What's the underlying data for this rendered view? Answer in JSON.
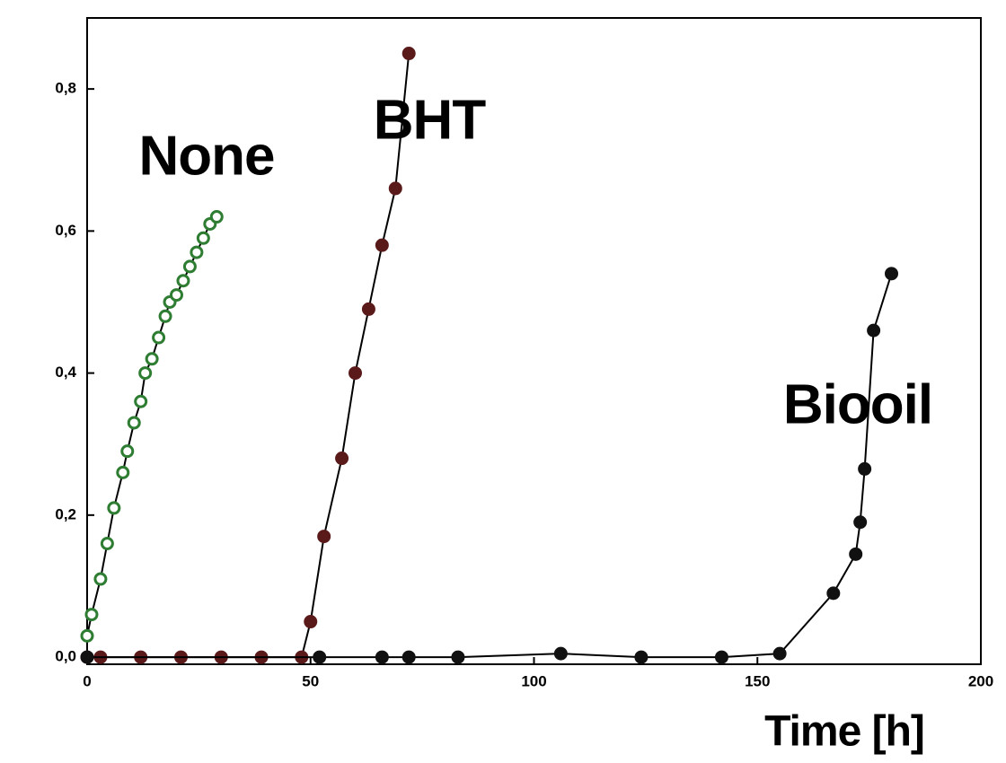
{
  "chart_data": {
    "type": "line",
    "xlabel": "Time [h]",
    "annotations": [
      "None",
      "BHT",
      "Biooil"
    ],
    "xlim": [
      0,
      200
    ],
    "xticks": [
      0,
      50,
      100,
      150,
      200
    ],
    "ylim": [
      -0.01,
      0.9
    ],
    "yticks": [
      {
        "value": 0,
        "label": "0,0"
      },
      {
        "value": 0.2,
        "label": "0,2"
      },
      {
        "value": 0.4,
        "label": "0,4"
      },
      {
        "value": 0.6,
        "label": "0,6"
      },
      {
        "value": 0.8,
        "label": "0,8"
      }
    ],
    "series": [
      {
        "name": "None",
        "color": "#2e7d32",
        "marker": "open",
        "x": [
          0,
          1,
          3,
          4.5,
          6,
          8,
          9,
          10.5,
          12,
          13,
          14.5,
          16,
          17.5,
          18.5,
          20,
          21.5,
          23,
          24.5,
          26,
          27.5,
          29
        ],
        "values": [
          0.03,
          0.06,
          0.11,
          0.16,
          0.21,
          0.26,
          0.29,
          0.33,
          0.36,
          0.4,
          0.42,
          0.45,
          0.48,
          0.5,
          0.51,
          0.53,
          0.55,
          0.57,
          0.59,
          0.61,
          0.62
        ]
      },
      {
        "name": "BHT",
        "color": "#5a1a1a",
        "marker": "filled",
        "x": [
          0,
          3,
          12,
          21,
          30,
          39,
          48,
          50,
          53,
          57,
          60,
          63,
          66,
          69,
          72
        ],
        "values": [
          0,
          0,
          0,
          0,
          0,
          0,
          0,
          0.05,
          0.17,
          0.28,
          0.4,
          0.49,
          0.58,
          0.66,
          0.85
        ]
      },
      {
        "name": "Biooil",
        "color": "#111111",
        "marker": "filled",
        "x": [
          0,
          52,
          66,
          72,
          83,
          106,
          124,
          142,
          155,
          167,
          172,
          173,
          174,
          176,
          180
        ],
        "values": [
          0,
          0,
          0,
          0,
          0,
          0.005,
          0,
          0,
          0.005,
          0.09,
          0.145,
          0.19,
          0.265,
          0.46,
          0.54
        ]
      }
    ]
  }
}
